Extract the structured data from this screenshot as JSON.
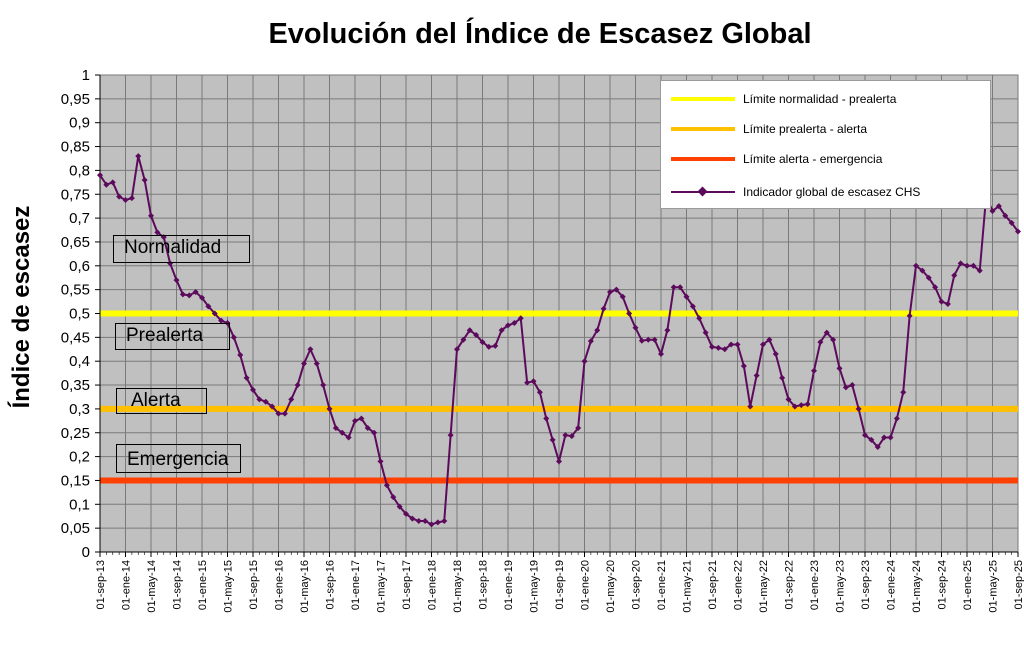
{
  "chart_data": {
    "type": "line",
    "title": "Evolución del Índice de Escasez Global",
    "ylabel": "Índice de escasez",
    "xlabel": "",
    "ylim": [
      0,
      1
    ],
    "y_ticks": [
      "0",
      "0,05",
      "0,1",
      "0,15",
      "0,2",
      "0,25",
      "0,3",
      "0,35",
      "0,4",
      "0,45",
      "0,5",
      "0,55",
      "0,6",
      "0,65",
      "0,7",
      "0,75",
      "0,8",
      "0,85",
      "0,9",
      "0,95",
      "1"
    ],
    "x_tick_labels": [
      "01-sep-13",
      "01-ene-14",
      "01-may-14",
      "01-sep-14",
      "01-ene-15",
      "01-may-15",
      "01-sep-15",
      "01-ene-16",
      "01-may-16",
      "01-sep-16",
      "01-ene-17",
      "01-may-17",
      "01-sep-17",
      "01-ene-18",
      "01-may-18",
      "01-sep-18",
      "01-ene-19",
      "01-may-19",
      "01-sep-19",
      "01-ene-20",
      "01-may-20",
      "01-sep-20",
      "01-ene-21",
      "01-may-21",
      "01-sep-21",
      "01-ene-22",
      "01-may-22",
      "01-sep-22",
      "01-ene-23",
      "01-may-23",
      "01-sep-23",
      "01-ene-24",
      "01-may-24",
      "01-sep-24",
      "01-ene-25",
      "01-may-25",
      "01-sep-25"
    ],
    "grid": true,
    "legend_position": "top-right",
    "thresholds": [
      {
        "name": "Límite normalidad - prealerta",
        "value": 0.5,
        "color": "#ffff00"
      },
      {
        "name": "Límite prealerta - alerta",
        "value": 0.3,
        "color": "#ffc000"
      },
      {
        "name": "Límite alerta - emergencia",
        "value": 0.15,
        "color": "#ff4000"
      }
    ],
    "series": [
      {
        "name": "Indicador global de escasez CHS",
        "color": "#5c0a5c",
        "start": "2013-09",
        "frequency": "monthly",
        "values": [
          0.79,
          0.77,
          0.775,
          0.745,
          0.738,
          0.742,
          0.83,
          0.78,
          0.705,
          0.67,
          0.66,
          0.605,
          0.57,
          0.54,
          0.538,
          0.545,
          0.533,
          0.515,
          0.5,
          0.485,
          0.48,
          0.45,
          0.413,
          0.365,
          0.34,
          0.32,
          0.315,
          0.305,
          0.29,
          0.29,
          0.32,
          0.35,
          0.395,
          0.425,
          0.395,
          0.35,
          0.3,
          0.26,
          0.25,
          0.24,
          0.275,
          0.28,
          0.26,
          0.25,
          0.19,
          0.14,
          0.115,
          0.095,
          0.08,
          0.07,
          0.065,
          0.065,
          0.058,
          0.062,
          0.065,
          0.245,
          0.425,
          0.445,
          0.465,
          0.455,
          0.44,
          0.43,
          0.432,
          0.465,
          0.475,
          0.48,
          0.49,
          0.355,
          0.358,
          0.335,
          0.28,
          0.235,
          0.19,
          0.245,
          0.243,
          0.26,
          0.4,
          0.442,
          0.465,
          0.51,
          0.545,
          0.55,
          0.535,
          0.5,
          0.47,
          0.443,
          0.445,
          0.445,
          0.415,
          0.465,
          0.555,
          0.555,
          0.535,
          0.515,
          0.49,
          0.46,
          0.43,
          0.428,
          0.425,
          0.435,
          0.435,
          0.39,
          0.305,
          0.37,
          0.435,
          0.445,
          0.415,
          0.365,
          0.32,
          0.305,
          0.308,
          0.31,
          0.38,
          0.44,
          0.46,
          0.445,
          0.385,
          0.345,
          0.35,
          0.3,
          0.245,
          0.235,
          0.22,
          0.24,
          0.24,
          0.28,
          0.335,
          0.495,
          0.6,
          0.59,
          0.575,
          0.555,
          0.525,
          0.52,
          0.58,
          0.605,
          0.6,
          0.6,
          0.59,
          0.745,
          0.715,
          0.725,
          0.705,
          0.69,
          0.672
        ]
      }
    ]
  },
  "zones": [
    {
      "id": "normalidad",
      "label": "Normalidad",
      "color": "#66bb1c"
    },
    {
      "id": "prealerta",
      "label": "Prealerta",
      "color": "#ffff00"
    },
    {
      "id": "alerta",
      "label": "Alerta",
      "color": "#ffc000"
    },
    {
      "id": "emergencia",
      "label": "Emergencia",
      "color": "#ff0000"
    }
  ]
}
